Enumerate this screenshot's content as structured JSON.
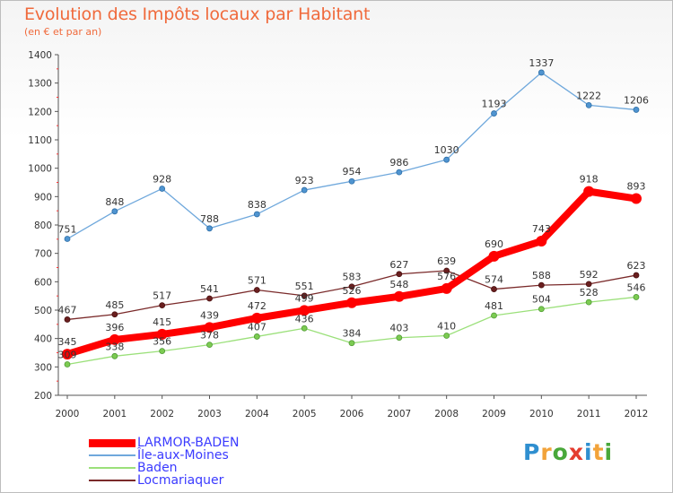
{
  "title": "Evolution des Impôts locaux par Habitant",
  "subtitle": "(en € et par an)",
  "logo": {
    "text": "Proxiti",
    "letter_colors": [
      "#2f8fd0",
      "#f2a33a",
      "#49a83a",
      "#e43c2f",
      "#2f8fd0",
      "#f2a33a",
      "#49a83a"
    ]
  },
  "chart_data": {
    "type": "line",
    "title": "Evolution des Impôts locaux par Habitant",
    "subtitle": "(en € et par an)",
    "x": [
      "2000",
      "2001",
      "2002",
      "2003",
      "2004",
      "2005",
      "2006",
      "2007",
      "2008",
      "2009",
      "2010",
      "2011",
      "2012"
    ],
    "y_ticks": [
      200,
      300,
      400,
      500,
      600,
      700,
      800,
      900,
      1000,
      1100,
      1200,
      1300,
      1400
    ],
    "ylim": [
      200,
      1400
    ],
    "grid": false,
    "legend_position": "bottom-left",
    "series": [
      {
        "name": "LARMOR-BADEN",
        "color": "#ff0000",
        "values": [
          345,
          396,
          415,
          439,
          472,
          499,
          526,
          548,
          576,
          690,
          743,
          918,
          893
        ],
        "labels": [
          "345",
          "396",
          "415",
          "439",
          "472",
          "499",
          "526",
          "548",
          "576",
          "690",
          "743",
          "918",
          "893"
        ]
      },
      {
        "name": "Île-aux-Moines",
        "color": "#6fa8dc",
        "values": [
          751,
          848,
          928,
          788,
          838,
          923,
          954,
          986,
          1030,
          1193,
          1337,
          1222,
          1206
        ],
        "labels": [
          "751",
          "848",
          "928",
          "788",
          "838",
          "923",
          "954",
          "986",
          "1030",
          "1193",
          "1337",
          "1222",
          "1206"
        ]
      },
      {
        "name": "Baden",
        "color": "#9be07a",
        "values": [
          309,
          338,
          356,
          378,
          407,
          436,
          384,
          403,
          410,
          481,
          504,
          528,
          546
        ],
        "labels": [
          "309",
          "338",
          "356",
          "378",
          "407",
          "436",
          "384",
          "403",
          "410",
          "481",
          "504",
          "528",
          "546"
        ]
      },
      {
        "name": "Locmariaquer",
        "color": "#7a2a2a",
        "values": [
          467,
          485,
          517,
          541,
          571,
          551,
          583,
          627,
          639,
          574,
          588,
          592,
          623
        ],
        "labels": [
          "467",
          "485",
          "517",
          "541",
          "571",
          "551",
          "583",
          "627",
          "639",
          "574",
          "588",
          "592",
          "623"
        ]
      }
    ]
  }
}
